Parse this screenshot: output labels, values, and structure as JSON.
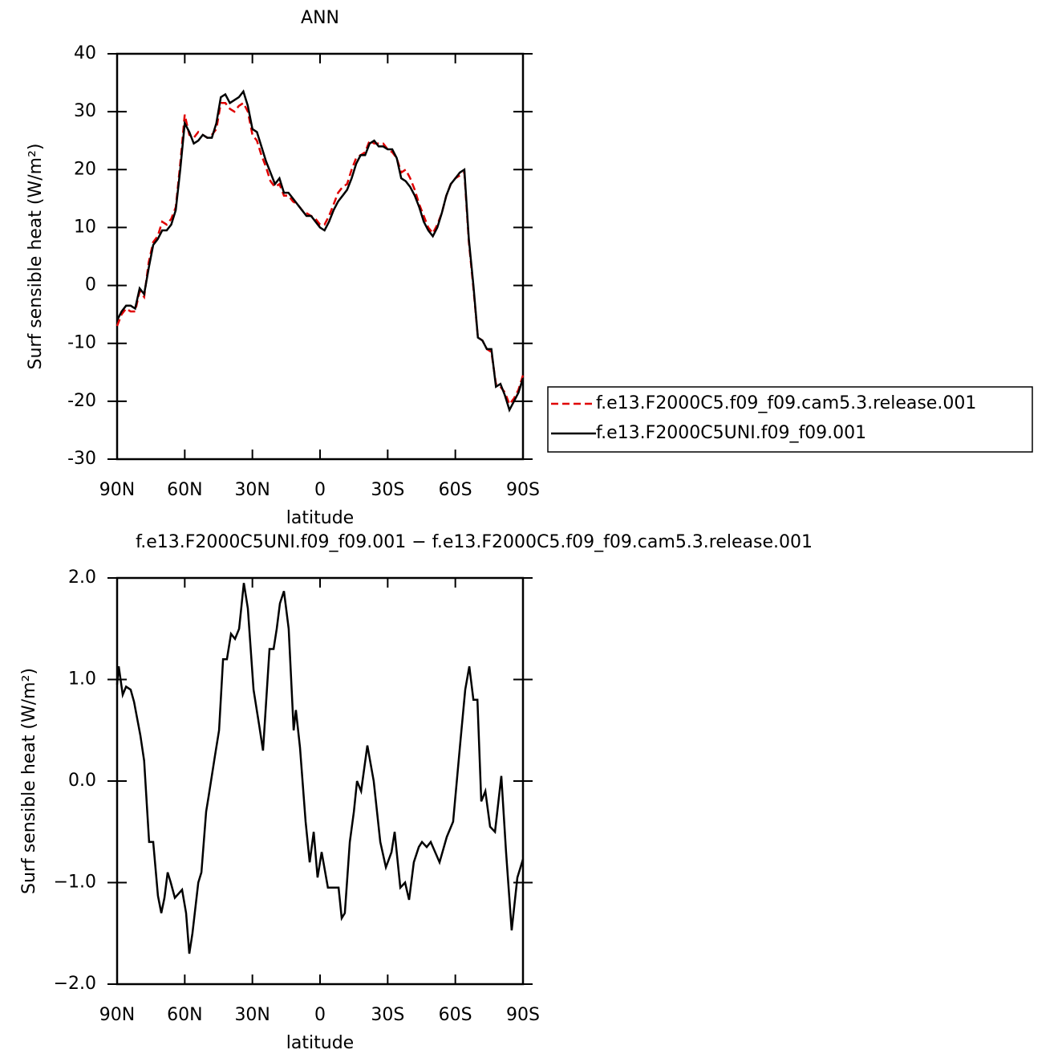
{
  "chart_data": [
    {
      "type": "line",
      "title": "ANN",
      "xlabel": "latitude",
      "ylabel": "Surf sensible heat (W/m²)",
      "xlim": [
        90,
        -90
      ],
      "ylim": [
        -30,
        40
      ],
      "xticks": [
        {
          "value": 90,
          "label": "90N"
        },
        {
          "value": 60,
          "label": "60N"
        },
        {
          "value": 30,
          "label": "30N"
        },
        0,
        {
          "value": -30,
          "label": "30S"
        },
        {
          "value": -60,
          "label": "60S"
        },
        {
          "value": -90,
          "label": "90S"
        }
      ],
      "yticks": [
        -30,
        -20,
        -10,
        0,
        10,
        20,
        30,
        40
      ],
      "legend": "right",
      "x": [
        90,
        88,
        86,
        84,
        82,
        80,
        78,
        76,
        74,
        72,
        70,
        68,
        66,
        64,
        62,
        60,
        58,
        56,
        54,
        52,
        50,
        48,
        46,
        44,
        42,
        40,
        38,
        36,
        34,
        32,
        30,
        28,
        26,
        24,
        22,
        20,
        18,
        16,
        14,
        12,
        10,
        8,
        6,
        4,
        2,
        0,
        -2,
        -4,
        -6,
        -8,
        -10,
        -12,
        -14,
        -16,
        -18,
        -20,
        -22,
        -24,
        -26,
        -28,
        -30,
        -32,
        -34,
        -36,
        -38,
        -40,
        -42,
        -44,
        -46,
        -48,
        -50,
        -52,
        -54,
        -56,
        -58,
        -60,
        -62,
        -64,
        -66,
        -68,
        -70,
        -72,
        -74,
        -76,
        -78,
        -80,
        -82,
        -84,
        -86,
        -88,
        -90
      ],
      "series": [
        {
          "name": "f.e13.F2000C5.f09_f09.cam5.3.release.001",
          "color": "#e00000",
          "style": "dashed",
          "values": [
            -7,
            -5,
            -4,
            -4.5,
            -4.5,
            -1,
            -2,
            4,
            7.5,
            8.5,
            11,
            10.5,
            11.5,
            13.5,
            21,
            29.5,
            26,
            25.5,
            26.5,
            26,
            25.5,
            26,
            27,
            31.5,
            31.5,
            30.5,
            30,
            31,
            31.5,
            30,
            26,
            25,
            22.5,
            20.5,
            18,
            17,
            17.5,
            15.5,
            15.5,
            14.5,
            14,
            13,
            12.5,
            12,
            11.5,
            10.5,
            10.5,
            12,
            14,
            16,
            17,
            17.5,
            20,
            22,
            22.5,
            23,
            25,
            24.5,
            24.5,
            24.5,
            23.5,
            23,
            22,
            19.5,
            20,
            18.5,
            16.5,
            14,
            12,
            10,
            9,
            10.5,
            12.5,
            15.5,
            17.5,
            18.5,
            19,
            19.5,
            7.5,
            -0.5,
            -9,
            -9.5,
            -11,
            -11.5,
            -17,
            -17.5,
            -18.5,
            -20.5,
            -19.5,
            -18,
            -15.5
          ]
        },
        {
          "name": "f.e13.F2000C5UNI.f09_f09.001",
          "color": "#000000",
          "style": "solid",
          "values": [
            -6,
            -4.5,
            -3.5,
            -3.5,
            -4,
            -0.5,
            -1.5,
            3,
            7,
            8,
            9.5,
            9.5,
            10.5,
            13,
            20,
            28,
            26.5,
            24.5,
            25,
            26,
            25.5,
            25.5,
            28,
            32.5,
            33,
            31.5,
            32,
            32.5,
            33.5,
            31,
            27,
            26.5,
            24,
            21.5,
            19.5,
            17.5,
            18.5,
            16,
            16,
            15,
            14,
            13,
            12,
            12,
            11,
            10,
            9.5,
            11,
            13,
            14.5,
            15.5,
            16.5,
            18.5,
            21,
            22.5,
            22.5,
            24.5,
            25,
            24,
            24,
            23.5,
            23.5,
            22,
            18.5,
            18,
            17,
            15.5,
            13.5,
            11,
            9.5,
            8.5,
            10,
            12.5,
            15.5,
            17.5,
            18.5,
            19.5,
            20,
            8,
            0,
            -9,
            -9.5,
            -11,
            -11,
            -17.5,
            -17,
            -19,
            -21.5,
            -20,
            -18.5,
            -16
          ]
        }
      ]
    },
    {
      "type": "line",
      "title": "f.e13.F2000C5UNI.f09_f09.001 − f.e13.F2000C5.f09_f09.cam5.3.release.001",
      "xlabel": "latitude",
      "ylabel": "Surf sensible heat (W/m²)",
      "xlim": [
        90,
        -90
      ],
      "ylim": [
        -2,
        2
      ],
      "xticks": [
        {
          "value": 90,
          "label": "90N"
        },
        {
          "value": 60,
          "label": "60N"
        },
        {
          "value": 30,
          "label": "30N"
        },
        0,
        {
          "value": -30,
          "label": "30S"
        },
        {
          "value": -60,
          "label": "60S"
        },
        {
          "value": -90,
          "label": "90S"
        }
      ],
      "yticks": [
        {
          "value": -2,
          "label": "−2.0"
        },
        {
          "value": -1,
          "label": "−1.0"
        },
        {
          "value": 0,
          "label": "0.0"
        },
        {
          "value": 1,
          "label": "1.0"
        },
        {
          "value": 2,
          "label": "2.0"
        }
      ],
      "x": [
        90,
        89.3,
        87.5,
        86,
        84,
        82.5,
        79.7,
        78,
        75.8,
        74,
        71.9,
        70.4,
        69,
        67.6,
        66.2,
        64.4,
        61.2,
        59.4,
        58,
        56.6,
        54,
        52.6,
        50.5,
        49.4,
        46.6,
        44.8,
        43,
        41.3,
        39.5,
        37.7,
        35.9,
        33.8,
        32,
        29.5,
        27,
        25.3,
        22.4,
        20.6,
        19.2,
        17.8,
        16,
        13.9,
        11.7,
        10.7,
        8.9,
        6.4,
        4.6,
        2.8,
        1.1,
        -0.7,
        -3.5,
        -5.7,
        -8.2,
        -9.6,
        -11,
        -13.2,
        -15,
        -16.4,
        -18.2,
        -21,
        -23.8,
        -26.7,
        -29.2,
        -31.7,
        -33.1,
        -35.6,
        -37.7,
        -39.5,
        -41.6,
        -43.8,
        -45.2,
        -47.3,
        -49.1,
        -53,
        -56.2,
        -59,
        -62.3,
        -64.4,
        -66.2,
        -68,
        -69.8,
        -71.5,
        -73.3,
        -75.4,
        -77.6,
        -80.4,
        -82.5,
        -85,
        -87.5,
        -90
      ],
      "series": [
        {
          "color": "#000000",
          "style": "solid",
          "values": [
            0.95,
            1.13,
            0.85,
            0.93,
            0.9,
            0.78,
            0.45,
            0.2,
            -0.6,
            -0.6,
            -1.13,
            -1.3,
            -1.15,
            -0.9,
            -1.0,
            -1.15,
            -1.07,
            -1.3,
            -1.7,
            -1.5,
            -1.0,
            -0.9,
            -0.3,
            -0.15,
            0.25,
            0.5,
            1.2,
            1.2,
            1.45,
            1.4,
            1.5,
            1.95,
            1.7,
            0.9,
            0.55,
            0.3,
            1.3,
            1.3,
            1.5,
            1.75,
            1.87,
            1.5,
            0.5,
            0.7,
            0.33,
            -0.4,
            -0.8,
            -0.5,
            -0.95,
            -0.7,
            -1.05,
            -1.05,
            -1.05,
            -1.35,
            -1.3,
            -0.6,
            -0.3,
            0,
            -0.1,
            0.35,
            0,
            -0.6,
            -0.85,
            -0.7,
            -0.5,
            -1.05,
            -1.0,
            -1.17,
            -0.8,
            -0.65,
            -0.6,
            -0.65,
            -0.6,
            -0.8,
            -0.55,
            -0.4,
            0.4,
            0.9,
            1.13,
            0.8,
            0.8,
            -0.2,
            -0.1,
            -0.45,
            -0.5,
            0.05,
            -0.7,
            -1.47,
            -0.95,
            -0.77
          ]
        }
      ]
    }
  ]
}
